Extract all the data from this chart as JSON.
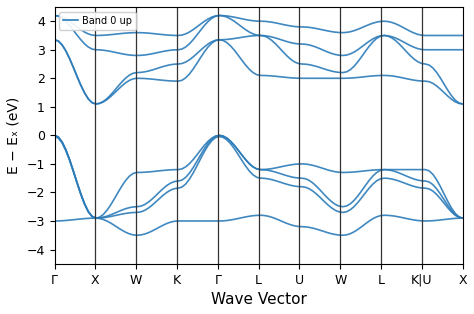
{
  "title": "",
  "xlabel": "Wave Vector",
  "ylabel": "E − Eₓ (eV)",
  "ylim": [
    -4.5,
    4.5
  ],
  "yticks": [
    -4,
    -3,
    -2,
    -1,
    0,
    1,
    2,
    3,
    4
  ],
  "line_color": "#2b7bb9",
  "line_width": 1.2,
  "legend_label": "Band 0 up",
  "kpoint_labels": [
    "Γ",
    "X",
    "W",
    "K",
    "Γ",
    "L",
    "U",
    "W",
    "L",
    "K|U",
    "X"
  ],
  "kpoint_positions": [
    0,
    1,
    2,
    3,
    4,
    5,
    6,
    7,
    8,
    9,
    10
  ],
  "vline_positions": [
    1,
    2,
    3,
    4,
    5,
    6,
    7,
    8,
    9
  ],
  "background_color": "#ffffff",
  "num_kpoints": 110,
  "nseg": 10
}
